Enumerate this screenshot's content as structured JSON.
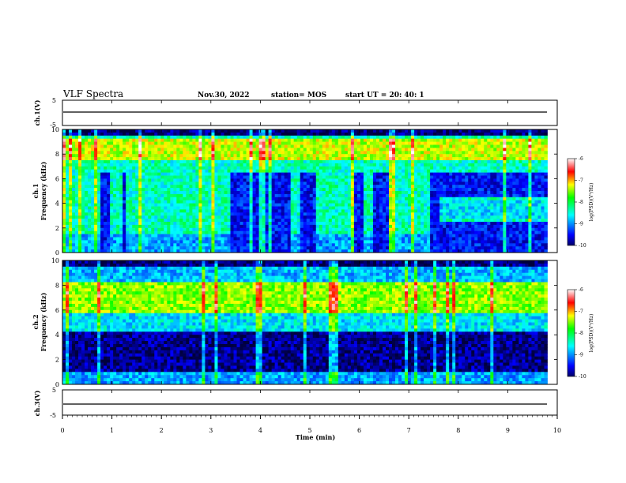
{
  "header": {
    "title": "VLF Spectra",
    "date": "Nov.30, 2022",
    "station": "station= MOS",
    "start_ut": "start  UT =  20: 40: 1"
  },
  "panels": {
    "ch1_wave": {
      "ylabel": "ch.1(V)",
      "ticks": [
        "5",
        "-5"
      ]
    },
    "ch1_spec": {
      "ylabel_line1": "ch.1",
      "ylabel_line2": "Frequency (kHz)"
    },
    "ch2_spec": {
      "ylabel_line1": "ch.2",
      "ylabel_line2": "Frequency (kHz)"
    },
    "ch3_wave": {
      "ylabel": "ch.3(V)",
      "ticks": [
        "5",
        "-5"
      ]
    }
  },
  "colorbar": {
    "label": "log(PSD)(V²/Hz)",
    "ticks": [
      "-6",
      "-7",
      "-8",
      "-9",
      "-10"
    ],
    "colors": [
      "#000066",
      "#0000ff",
      "#00ffff",
      "#00ff00",
      "#ffff00",
      "#ff0000",
      "#ffffff"
    ]
  },
  "chart_data": {
    "type": "heatmap",
    "xlabel": "Time (min)",
    "x_ticks": [
      "0",
      "1",
      "2",
      "3",
      "4",
      "5",
      "6",
      "7",
      "8",
      "9",
      "10"
    ],
    "xlim": [
      0,
      10
    ],
    "ylim_freq": [
      0,
      10
    ],
    "freq_ticks": [
      "0",
      "2",
      "4",
      "6",
      "8",
      "10"
    ],
    "wave_ylim": [
      -5,
      5
    ],
    "data_end_min": 9.8,
    "color_scale": [
      -10,
      -6
    ]
  }
}
